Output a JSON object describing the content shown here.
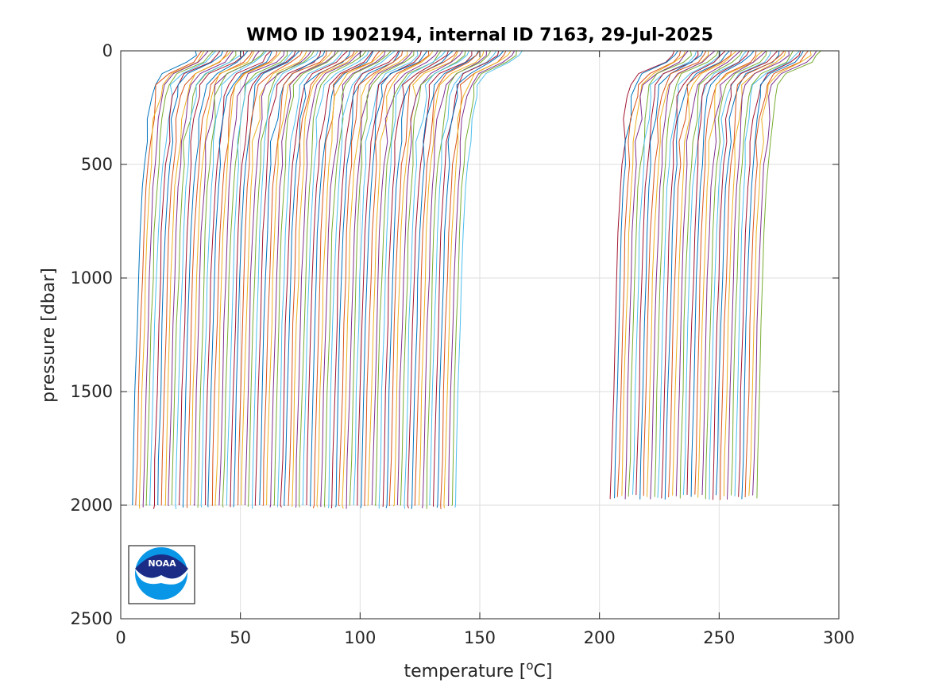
{
  "chart_data": {
    "type": "line",
    "title": "WMO ID 1902194, internal ID 7163, 29-Jul-2025",
    "xlabel": {
      "prefix": "temperature [",
      "sup": "o",
      "suffix": "C]"
    },
    "ylabel": "pressure [dbar]",
    "xlim": [
      0,
      300
    ],
    "ylim": [
      0,
      2500
    ],
    "y_reversed": true,
    "grid": true,
    "xticks": [
      0,
      50,
      100,
      150,
      200,
      250,
      300
    ],
    "yticks": [
      0,
      500,
      1000,
      1500,
      2000,
      2500
    ],
    "profile_pressures": [
      0,
      20,
      50,
      100,
      150,
      200,
      300,
      400,
      500,
      600,
      800,
      1000,
      1200,
      1500,
      1800,
      2000
    ],
    "series_colors": [
      "#0072BD",
      "#D95319",
      "#EDB120",
      "#7E2F8E",
      "#77AC30",
      "#4DBEEE",
      "#A2142F"
    ],
    "group_a": {
      "count": 90,
      "offset_start": 4,
      "offset_end": 139,
      "profile_shape": [
        28,
        27,
        24,
        14,
        10,
        9,
        7.5,
        6.5,
        5.8,
        5,
        4,
        3.4,
        2.8,
        2,
        1.3,
        0.8
      ],
      "max_pressure": 2000
    },
    "group_b": {
      "count": 41,
      "offset_start": 204,
      "offset_end": 265,
      "profile_shape": [
        27,
        26,
        23,
        13,
        9,
        8,
        6.8,
        6,
        5.3,
        4.6,
        3.7,
        3.1,
        2.5,
        1.8,
        1.1,
        0.6
      ],
      "max_pressure": 1960
    }
  },
  "logo": {
    "text": "NOAA",
    "icon": "noaa-logo-icon"
  }
}
